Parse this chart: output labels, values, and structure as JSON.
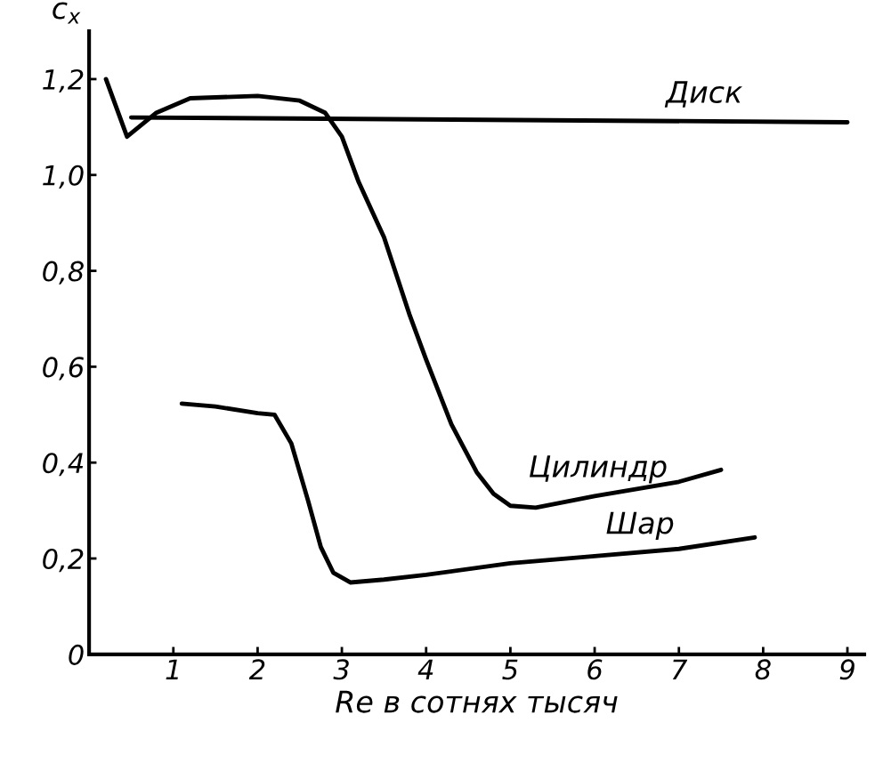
{
  "chart_data": {
    "type": "line",
    "xlabel": "Re в сотнях тысяч",
    "ylabel": "c$_{x}$",
    "xlim": [
      0,
      9.2
    ],
    "ylim": [
      0,
      1.3
    ],
    "xticks": [
      1,
      2,
      3,
      4,
      5,
      6,
      7,
      8,
      9
    ],
    "yticks": [
      {
        "value": 0,
        "label": "0"
      },
      {
        "value": 0.2,
        "label": "0,2"
      },
      {
        "value": 0.4,
        "label": "0,4"
      },
      {
        "value": 0.6,
        "label": "0,6"
      },
      {
        "value": 0.8,
        "label": "0,8"
      },
      {
        "value": 1.0,
        "label": "1,0"
      },
      {
        "value": 1.2,
        "label": "1,2"
      }
    ],
    "grid": false,
    "legend": false,
    "marker": "none",
    "line_style": "solid",
    "series": [
      {
        "name": "Диск",
        "color": "#000000",
        "x": [
          0.5,
          9.0
        ],
        "values": [
          1.12,
          1.11
        ]
      },
      {
        "name": "Цилиндр",
        "color": "#000000",
        "x": [
          0.2,
          0.45,
          0.8,
          1.2,
          2.0,
          2.5,
          2.8,
          3.0,
          3.2,
          3.5,
          3.8,
          4.0,
          4.3,
          4.6,
          4.8,
          5.0,
          5.3,
          6.0,
          7.0,
          7.5
        ],
        "values": [
          1.2,
          1.08,
          1.13,
          1.16,
          1.165,
          1.155,
          1.13,
          1.08,
          0.985,
          0.87,
          0.71,
          0.615,
          0.48,
          0.38,
          0.335,
          0.31,
          0.306,
          0.33,
          0.36,
          0.385
        ]
      },
      {
        "name": "Шар",
        "color": "#000000",
        "x": [
          1.1,
          1.5,
          2.0,
          2.2,
          2.4,
          2.6,
          2.75,
          2.9,
          3.1,
          3.5,
          4.0,
          5.0,
          6.0,
          7.0,
          7.9
        ],
        "values": [
          0.523,
          0.517,
          0.503,
          0.5,
          0.44,
          0.32,
          0.224,
          0.17,
          0.15,
          0.156,
          0.166,
          0.19,
          0.205,
          0.22,
          0.244
        ]
      }
    ]
  }
}
